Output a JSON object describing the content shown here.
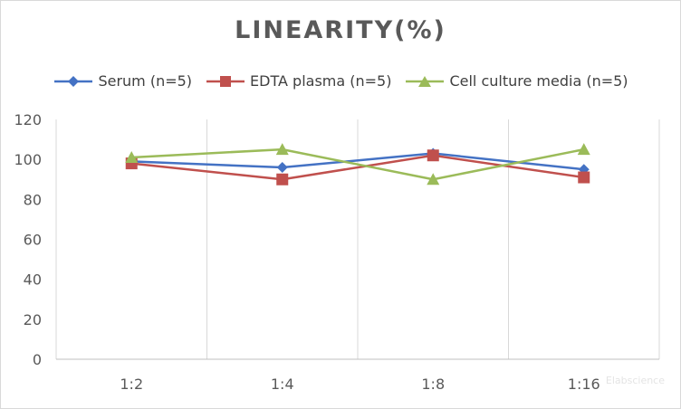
{
  "chart_data": {
    "type": "line",
    "title": "LINEARITY(%)",
    "categories": [
      "1:2",
      "1:4",
      "1:8",
      "1:16"
    ],
    "series": [
      {
        "name": "Serum (n=5)",
        "values": [
          99,
          96,
          103,
          95
        ],
        "color": "#4472c4",
        "marker": "diamond"
      },
      {
        "name": "EDTA plasma (n=5)",
        "values": [
          98,
          90,
          102,
          91
        ],
        "color": "#c0504d",
        "marker": "square"
      },
      {
        "name": "Cell culture media (n=5)",
        "values": [
          101,
          105,
          90,
          105
        ],
        "color": "#9bbb59",
        "marker": "triangle"
      }
    ],
    "ylim": [
      0,
      120
    ],
    "yticks": [
      0,
      20,
      40,
      60,
      80,
      100,
      120
    ],
    "xlabel": "",
    "ylabel": "",
    "grid": "vertical",
    "legend": "top"
  },
  "watermark": "Elabscience"
}
